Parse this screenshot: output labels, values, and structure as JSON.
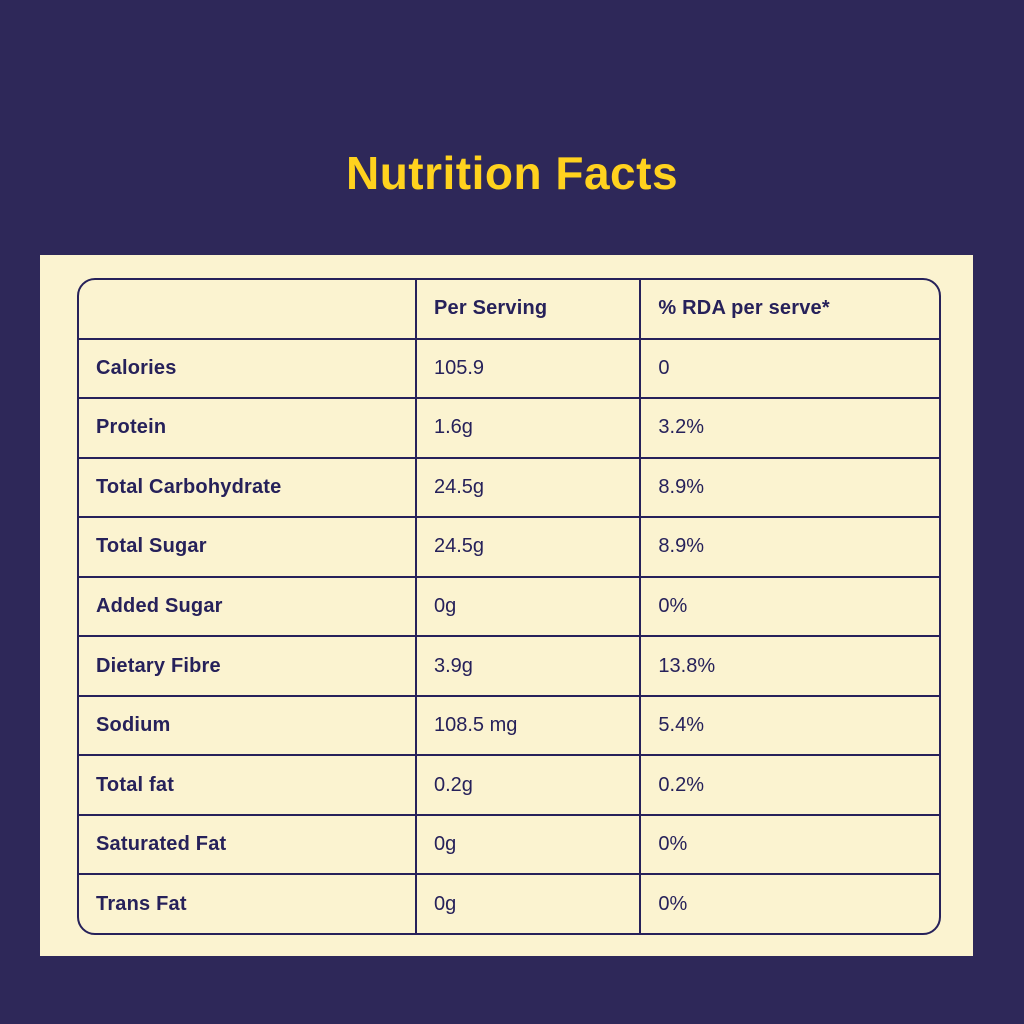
{
  "page": {
    "title": "Nutrition Facts"
  },
  "colors": {
    "background": "#2E2859",
    "panel": "#FBF3D0",
    "ink": "#26215A",
    "title_yellow": "#FFD21E"
  },
  "table": {
    "header": {
      "label": "",
      "per_serving": "Per Serving",
      "rda": "% RDA per serve*"
    },
    "rows": [
      {
        "label": "Calories",
        "per_serving": "105.9",
        "rda": "0"
      },
      {
        "label": "Protein",
        "per_serving": "1.6g",
        "rda": "3.2%"
      },
      {
        "label": "Total Carbohydrate",
        "per_serving": "24.5g",
        "rda": "8.9%"
      },
      {
        "label": "Total Sugar",
        "per_serving": "24.5g",
        "rda": "8.9%"
      },
      {
        "label": "Added Sugar",
        "per_serving": "0g",
        "rda": "0%"
      },
      {
        "label": "Dietary Fibre",
        "per_serving": "3.9g",
        "rda": "13.8%"
      },
      {
        "label": "Sodium",
        "per_serving": "108.5 mg",
        "rda": "5.4%"
      },
      {
        "label": "Total fat",
        "per_serving": "0.2g",
        "rda": "0.2%"
      },
      {
        "label": "Saturated Fat",
        "per_serving": "0g",
        "rda": "0%"
      },
      {
        "label": "Trans Fat",
        "per_serving": "0g",
        "rda": "0%"
      }
    ]
  }
}
